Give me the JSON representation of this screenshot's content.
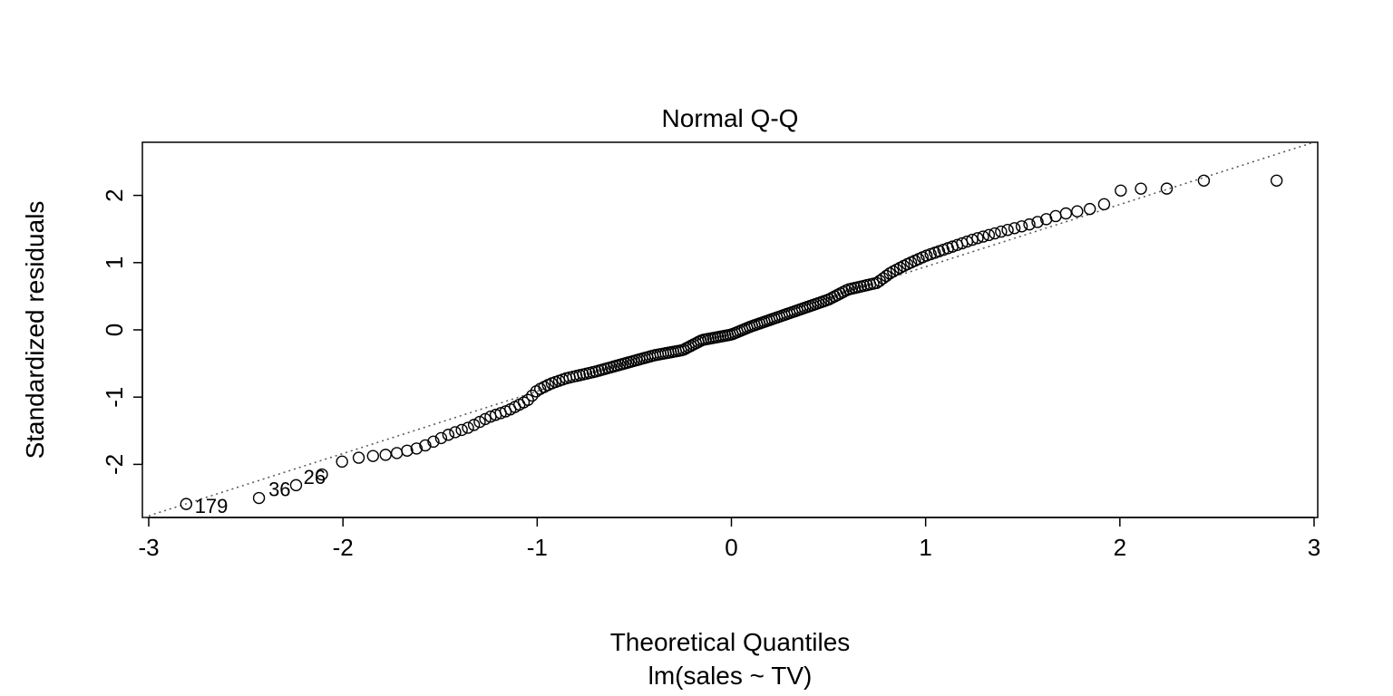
{
  "chart_data": {
    "type": "scatter",
    "title": "Normal Q-Q",
    "xlabel": "Theoretical Quantiles",
    "subtitle": "lm(sales ~ TV)",
    "ylabel": "Standardized residuals",
    "xlim": [
      -3.0,
      3.0
    ],
    "ylim": [
      -2.8,
      2.8
    ],
    "x_ticks": [
      -3,
      -2,
      -1,
      0,
      1,
      2,
      3
    ],
    "x_tick_labels": [
      "-3",
      "-2",
      "-1",
      "0",
      "1",
      "2",
      "3"
    ],
    "y_ticks": [
      -2,
      -1,
      0,
      1,
      2
    ],
    "y_tick_labels": [
      "-2",
      "-1",
      "0",
      "1",
      "2"
    ],
    "grid": false,
    "legend": "none",
    "reference_line": {
      "style": "dotted",
      "intercept": 0.013,
      "slope": 0.926,
      "color": "#555555"
    },
    "marker": "open-circle",
    "labeled_points": [
      {
        "label": "179",
        "x": -2.81,
        "y": -2.59
      },
      {
        "label": "36",
        "x": -2.43,
        "y": -2.5
      },
      {
        "label": "26",
        "x": -2.25,
        "y": -2.32
      }
    ],
    "anchors": [
      [
        -2.81,
        -2.59
      ],
      [
        -2.43,
        -2.5
      ],
      [
        -2.25,
        -2.32
      ],
      [
        -2.1,
        -2.14
      ],
      [
        -2.0,
        -1.95
      ],
      [
        -1.9,
        -1.89
      ],
      [
        -1.75,
        -1.85
      ],
      [
        -1.6,
        -1.75
      ],
      [
        -1.45,
        -1.55
      ],
      [
        -1.35,
        -1.45
      ],
      [
        -1.25,
        -1.3
      ],
      [
        -1.15,
        -1.2
      ],
      [
        -1.05,
        -1.05
      ],
      [
        -1.0,
        -0.9
      ],
      [
        -0.93,
        -0.8
      ],
      [
        -0.85,
        -0.72
      ],
      [
        -0.7,
        -0.62
      ],
      [
        -0.55,
        -0.5
      ],
      [
        -0.4,
        -0.38
      ],
      [
        -0.25,
        -0.3
      ],
      [
        -0.15,
        -0.15
      ],
      [
        0.0,
        -0.07
      ],
      [
        0.1,
        0.05
      ],
      [
        0.2,
        0.15
      ],
      [
        0.35,
        0.3
      ],
      [
        0.5,
        0.45
      ],
      [
        0.6,
        0.6
      ],
      [
        0.75,
        0.7
      ],
      [
        0.82,
        0.85
      ],
      [
        0.9,
        0.97
      ],
      [
        1.0,
        1.1
      ],
      [
        1.1,
        1.2
      ],
      [
        1.25,
        1.35
      ],
      [
        1.4,
        1.47
      ],
      [
        1.55,
        1.58
      ],
      [
        1.7,
        1.72
      ],
      [
        1.85,
        1.8
      ],
      [
        1.93,
        1.88
      ],
      [
        2.0,
        2.07
      ],
      [
        2.1,
        2.1
      ],
      [
        2.24,
        2.1
      ],
      [
        2.43,
        2.22
      ],
      [
        2.81,
        2.22
      ]
    ],
    "n_points": 200
  }
}
